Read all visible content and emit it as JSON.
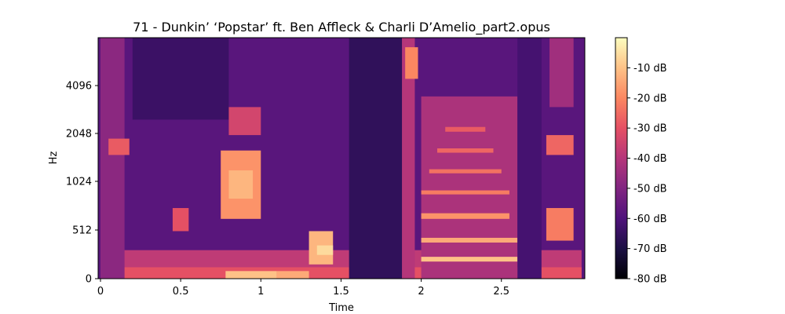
{
  "chart_data": {
    "type": "heatmap",
    "title": "71 - Dunkin’ ‘Popstar’ ft. Ben Affleck & Charli D’Amelio_part2.opus",
    "xlabel": "Time",
    "ylabel": "Hz",
    "x_ticks": [
      {
        "value": 0,
        "label": "0"
      },
      {
        "value": 0.5,
        "label": "0.5"
      },
      {
        "value": 1.0,
        "label": "1"
      },
      {
        "value": 1.5,
        "label": "1.5"
      },
      {
        "value": 2.0,
        "label": "2"
      },
      {
        "value": 2.5,
        "label": "2.5"
      }
    ],
    "y_ticks": [
      {
        "value": 0,
        "label": "0"
      },
      {
        "value": 512,
        "label": "512"
      },
      {
        "value": 1024,
        "label": "1024"
      },
      {
        "value": 2048,
        "label": "2048"
      },
      {
        "value": 4096,
        "label": "4096"
      }
    ],
    "xlim": [
      0,
      3.0
    ],
    "y_scale": "log2-like (librosa log frequency axis)",
    "ylim_hz": [
      0,
      8000
    ],
    "colorbar": {
      "colormap": "magma",
      "range_db": [
        -80,
        0
      ],
      "ticks": [
        {
          "value": -10,
          "label": "-10 dB"
        },
        {
          "value": -20,
          "label": "-20 dB"
        },
        {
          "value": -30,
          "label": "-30 dB"
        },
        {
          "value": -40,
          "label": "-40 dB"
        },
        {
          "value": -50,
          "label": "-50 dB"
        },
        {
          "value": -60,
          "label": "-60 dB"
        },
        {
          "value": -70,
          "label": "-70 dB"
        },
        {
          "value": -80,
          "label": "-80 dB"
        }
      ],
      "stops": [
        "#000004",
        "#1c1044",
        "#4f127b",
        "#812581",
        "#b5367a",
        "#e55064",
        "#fb8761",
        "#fec287",
        "#fcfdbf"
      ]
    },
    "regions": [
      {
        "t0": 0.0,
        "t1": 3.0,
        "f0": 0,
        "f1": 8000,
        "db": -58
      },
      {
        "t0": 0.0,
        "t1": 3.0,
        "f0": 0,
        "f1": 300,
        "db": -38
      },
      {
        "t0": 0.0,
        "t1": 3.0,
        "f0": 0,
        "f1": 120,
        "db": -30
      },
      {
        "t0": 0.0,
        "t1": 0.15,
        "f0": 0,
        "f1": 8000,
        "db": -48
      },
      {
        "t0": 0.2,
        "t1": 0.8,
        "f0": 2500,
        "f1": 8000,
        "db": -64
      },
      {
        "t0": 0.05,
        "t1": 0.18,
        "f0": 1500,
        "f1": 1900,
        "db": -28
      },
      {
        "t0": 0.45,
        "t1": 0.55,
        "f0": 500,
        "f1": 700,
        "db": -30
      },
      {
        "t0": 0.75,
        "t1": 1.0,
        "f0": 600,
        "f1": 1600,
        "db": -18
      },
      {
        "t0": 0.8,
        "t1": 0.95,
        "f0": 800,
        "f1": 1200,
        "db": -12
      },
      {
        "t0": 0.8,
        "t1": 1.0,
        "f0": 2000,
        "f1": 3000,
        "db": -34
      },
      {
        "t0": 0.78,
        "t1": 1.1,
        "f0": 0,
        "f1": 80,
        "db": -10
      },
      {
        "t0": 1.1,
        "t1": 1.3,
        "f0": 0,
        "f1": 80,
        "db": -14
      },
      {
        "t0": 1.3,
        "t1": 1.45,
        "f0": 150,
        "f1": 500,
        "db": -12
      },
      {
        "t0": 1.35,
        "t1": 1.45,
        "f0": 250,
        "f1": 350,
        "db": -6
      },
      {
        "t0": 1.6,
        "t1": 1.85,
        "f0": 3500,
        "f1": 8000,
        "db": -76
      },
      {
        "t0": 1.55,
        "t1": 1.9,
        "f0": 0,
        "f1": 8000,
        "db": -66
      },
      {
        "t0": 1.88,
        "t1": 1.96,
        "f0": 0,
        "f1": 8000,
        "db": -40
      },
      {
        "t0": 1.9,
        "t1": 1.98,
        "f0": 4500,
        "f1": 7000,
        "db": -20
      },
      {
        "t0": 2.0,
        "t1": 2.6,
        "f0": 0,
        "f1": 3500,
        "db": -42
      },
      {
        "t0": 2.0,
        "t1": 2.6,
        "f0": 180,
        "f1": 230,
        "db": -10
      },
      {
        "t0": 2.0,
        "t1": 2.6,
        "f0": 380,
        "f1": 430,
        "db": -14
      },
      {
        "t0": 2.0,
        "t1": 2.55,
        "f0": 600,
        "f1": 650,
        "db": -18
      },
      {
        "t0": 2.0,
        "t1": 2.55,
        "f0": 850,
        "f1": 900,
        "db": -22
      },
      {
        "t0": 2.05,
        "t1": 2.5,
        "f0": 1150,
        "f1": 1220,
        "db": -24
      },
      {
        "t0": 2.1,
        "t1": 2.45,
        "f0": 1550,
        "f1": 1650,
        "db": -26
      },
      {
        "t0": 2.15,
        "t1": 2.4,
        "f0": 2100,
        "f1": 2250,
        "db": -28
      },
      {
        "t0": 2.6,
        "t1": 2.75,
        "f0": 0,
        "f1": 8000,
        "db": -62
      },
      {
        "t0": 2.78,
        "t1": 2.95,
        "f0": 400,
        "f1": 700,
        "db": -22
      },
      {
        "t0": 2.78,
        "t1": 2.95,
        "f0": 1500,
        "f1": 2000,
        "db": -26
      },
      {
        "t0": 2.8,
        "t1": 2.95,
        "f0": 3000,
        "f1": 8000,
        "db": -44
      }
    ]
  }
}
